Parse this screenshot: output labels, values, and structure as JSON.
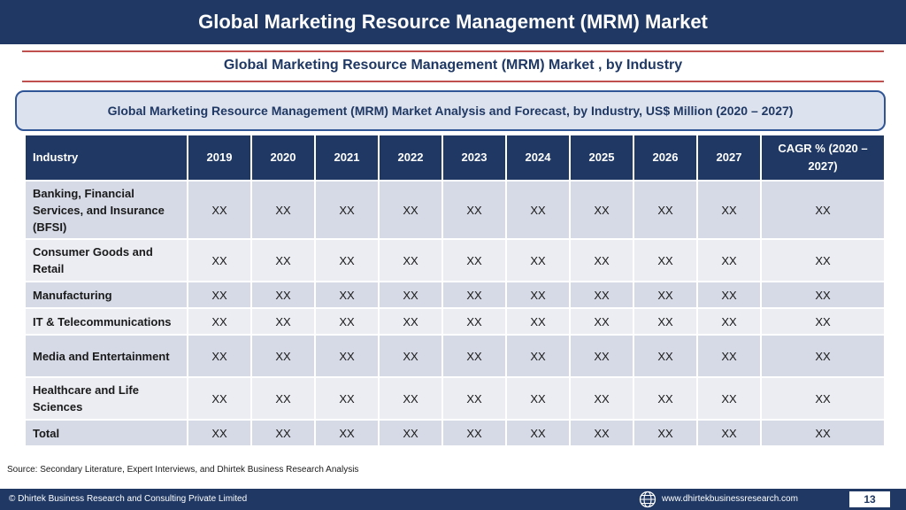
{
  "header": {
    "title": "Global Marketing Resource Management (MRM) Market",
    "subtitle": "Global Marketing Resource Management (MRM) Market , by Industry"
  },
  "table": {
    "caption": "Global Marketing Resource Management (MRM) Market  Analysis and Forecast, by Industry, US$ Million (2020 – 2027)",
    "columns": [
      "Industry",
      "2019",
      "2020",
      "2021",
      "2022",
      "2023",
      "2024",
      "2025",
      "2026",
      "2027",
      "CAGR % (2020 – 2027)"
    ],
    "rows": [
      {
        "industry": "Banking, Financial Services, and Insurance (BFSI)",
        "values": [
          "XX",
          "XX",
          "XX",
          "XX",
          "XX",
          "XX",
          "XX",
          "XX",
          "XX",
          "XX"
        ]
      },
      {
        "industry": "Consumer Goods and Retail",
        "values": [
          "XX",
          "XX",
          "XX",
          "XX",
          "XX",
          "XX",
          "XX",
          "XX",
          "XX",
          "XX"
        ]
      },
      {
        "industry": "Manufacturing",
        "values": [
          "XX",
          "XX",
          "XX",
          "XX",
          "XX",
          "XX",
          "XX",
          "XX",
          "XX",
          "XX"
        ]
      },
      {
        "industry": "IT & Telecommunications",
        "values": [
          "XX",
          "XX",
          "XX",
          "XX",
          "XX",
          "XX",
          "XX",
          "XX",
          "XX",
          "XX"
        ]
      },
      {
        "industry": "Media and Entertainment",
        "values": [
          "XX",
          "XX",
          "XX",
          "XX",
          "XX",
          "XX",
          "XX",
          "XX",
          "XX",
          "XX"
        ]
      },
      {
        "industry": "Healthcare and Life Sciences",
        "values": [
          "XX",
          "XX",
          "XX",
          "XX",
          "XX",
          "XX",
          "XX",
          "XX",
          "XX",
          "XX"
        ]
      },
      {
        "industry": "Total",
        "values": [
          "XX",
          "XX",
          "XX",
          "XX",
          "XX",
          "XX",
          "XX",
          "XX",
          "XX",
          "XX"
        ]
      }
    ]
  },
  "source": "Source: Secondary Literature, Expert Interviews, and Dhirtek Business Research Analysis",
  "footer": {
    "copyright": "© Dhirtek Business Research and Consulting Private Limited",
    "website": "www.dhirtekbusinessresearch.com",
    "page_number": "13",
    "globe_icon": "globe-icon"
  },
  "colors": {
    "navy": "#1f3864",
    "accent_red": "#c0504d",
    "row_dark": "#d5dae6",
    "row_light": "#ebedf3"
  }
}
